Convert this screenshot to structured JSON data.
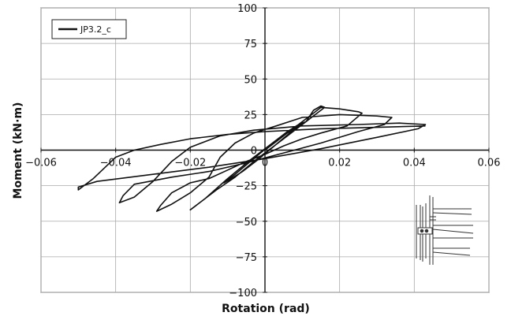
{
  "chart_data": {
    "type": "line",
    "xlabel": "Rotation (rad)",
    "ylabel": "Moment (kN·m)",
    "xlim": [
      -0.06,
      0.06
    ],
    "ylim": [
      -100,
      100
    ],
    "x_ticks": [
      -0.06,
      -0.04,
      -0.02,
      0,
      0.02,
      0.04,
      0.06
    ],
    "y_ticks": [
      -100,
      -75,
      -50,
      -25,
      0,
      25,
      50,
      75,
      100
    ],
    "x_tick_labels": [
      "−0.06",
      "−0.04",
      "−0.02",
      "0",
      "0.02",
      "0.04",
      "0.06"
    ],
    "y_tick_labels": [
      "−100",
      "−75",
      "−50",
      "−25",
      "0",
      "25",
      "50",
      "75",
      "100"
    ],
    "grid": true,
    "legend": {
      "position": "top-left",
      "entries": [
        "JP3.2_c"
      ]
    },
    "inset": "connection-detail-sketch",
    "series": [
      {
        "name": "JP3.2_c",
        "color": "#111111",
        "points": [
          [
            0,
            0
          ],
          [
            0.003,
            6
          ],
          [
            0.006,
            12
          ],
          [
            0.009,
            17
          ],
          [
            0.011,
            20
          ],
          [
            0.008,
            15
          ],
          [
            0.003,
            4
          ],
          [
            -0.002,
            -7
          ],
          [
            -0.006,
            -15
          ],
          [
            -0.009,
            -20
          ],
          [
            -0.011,
            -23
          ],
          [
            -0.008,
            -17
          ],
          [
            -0.003,
            -6
          ],
          [
            0.002,
            5
          ],
          [
            0.006,
            13
          ],
          [
            0.009,
            18
          ],
          [
            0.011,
            20
          ],
          [
            0.013,
            28
          ],
          [
            0.015,
            31
          ],
          [
            0.016,
            30
          ],
          [
            0.012,
            22
          ],
          [
            0.005,
            8
          ],
          [
            -0.002,
            -6
          ],
          [
            -0.008,
            -19
          ],
          [
            -0.013,
            -28
          ],
          [
            -0.017,
            -36
          ],
          [
            -0.019,
            -40
          ],
          [
            -0.02,
            -42
          ],
          [
            -0.016,
            -34
          ],
          [
            -0.01,
            -20
          ],
          [
            -0.004,
            -7
          ],
          [
            0.002,
            5
          ],
          [
            0.008,
            16
          ],
          [
            0.013,
            26
          ],
          [
            0.015,
            30
          ],
          [
            0.02,
            29
          ],
          [
            0.025,
            27
          ],
          [
            0.026,
            26
          ],
          [
            0.022,
            17
          ],
          [
            0.015,
            12
          ],
          [
            0.01,
            8
          ],
          [
            0.005,
            3
          ],
          [
            0.0,
            -3
          ],
          [
            -0.005,
            -8
          ],
          [
            -0.01,
            -14
          ],
          [
            -0.015,
            -20
          ],
          [
            -0.02,
            -23
          ],
          [
            -0.025,
            -30
          ],
          [
            -0.028,
            -39
          ],
          [
            -0.029,
            -43
          ],
          [
            -0.025,
            -38
          ],
          [
            -0.02,
            -30
          ],
          [
            -0.015,
            -19
          ],
          [
            -0.012,
            -5
          ],
          [
            -0.008,
            5
          ],
          [
            -0.003,
            12
          ],
          [
            0.003,
            17
          ],
          [
            0.01,
            23
          ],
          [
            0.02,
            25
          ],
          [
            0.03,
            24
          ],
          [
            0.034,
            23
          ],
          [
            0.032,
            18
          ],
          [
            0.025,
            13
          ],
          [
            0.015,
            5
          ],
          [
            0.005,
            -2
          ],
          [
            -0.005,
            -9
          ],
          [
            -0.015,
            -15
          ],
          [
            -0.025,
            -19
          ],
          [
            -0.035,
            -24
          ],
          [
            -0.038,
            -32
          ],
          [
            -0.039,
            -37
          ],
          [
            -0.035,
            -33
          ],
          [
            -0.03,
            -22
          ],
          [
            -0.025,
            -8
          ],
          [
            -0.02,
            2
          ],
          [
            -0.012,
            10
          ],
          [
            -0.003,
            14
          ],
          [
            0.01,
            17
          ],
          [
            0.025,
            18
          ],
          [
            0.036,
            19
          ],
          [
            0.043,
            18
          ],
          [
            0.041,
            15
          ],
          [
            0.03,
            9
          ],
          [
            0.015,
            1
          ],
          [
            0.0,
            -6
          ],
          [
            -0.015,
            -12
          ],
          [
            -0.03,
            -17
          ],
          [
            -0.045,
            -22
          ],
          [
            -0.05,
            -26
          ],
          [
            -0.05,
            -28
          ],
          [
            -0.046,
            -20
          ],
          [
            -0.04,
            -5
          ],
          [
            -0.035,
            0
          ],
          [
            -0.028,
            4
          ],
          [
            -0.02,
            8
          ],
          [
            -0.01,
            11
          ],
          [
            0.0,
            13
          ],
          [
            0.015,
            15
          ],
          [
            0.03,
            16
          ],
          [
            0.043,
            17
          ]
        ]
      }
    ]
  }
}
